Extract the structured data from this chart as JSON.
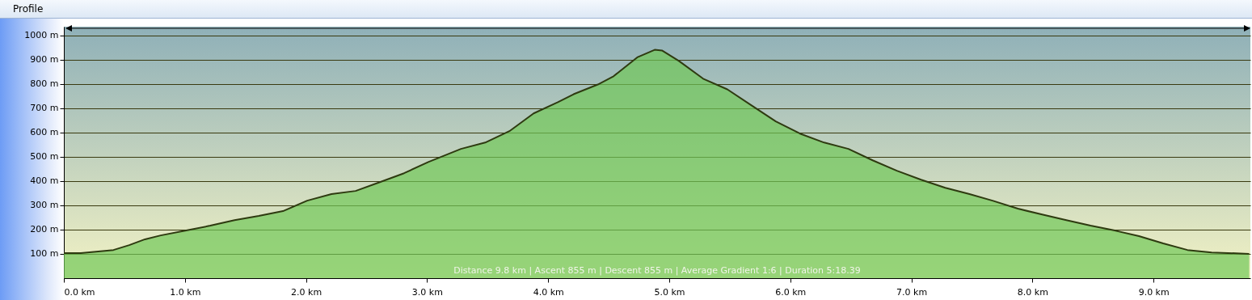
{
  "chart_data": {
    "type": "area",
    "title": "Profile",
    "x": [
      0,
      0.14,
      0.41,
      0.54,
      0.67,
      0.8,
      1.01,
      1.21,
      1.41,
      1.61,
      1.81,
      2.01,
      2.21,
      2.41,
      2.61,
      2.81,
      3.01,
      3.28,
      3.48,
      3.68,
      3.88,
      4.08,
      4.21,
      4.41,
      4.54,
      4.74,
      4.88,
      4.94,
      5.08,
      5.28,
      5.48,
      5.68,
      5.88,
      6.08,
      6.28,
      6.48,
      6.68,
      6.88,
      7.08,
      7.28,
      7.48,
      7.67,
      7.88,
      8.08,
      8.28,
      8.48,
      8.68,
      8.88,
      9.08,
      9.28,
      9.48,
      9.79
    ],
    "series": [
      {
        "color": "#70c858",
        "values": [
          103,
          103,
          116,
          136,
          160,
          176,
          196,
          216,
          239,
          256,
          276,
          319,
          346,
          359,
          395,
          432,
          478,
          532,
          558,
          605,
          678,
          724,
          757,
          797,
          831,
          910,
          940,
          937,
          894,
          821,
          777,
          711,
          645,
          595,
          558,
          532,
          485,
          442,
          405,
          372,
          346,
          319,
          286,
          262,
          239,
          216,
          196,
          173,
          143,
          116,
          106,
          100
        ]
      }
    ],
    "xlim": [
      0,
      9.8
    ],
    "ylim": [
      0,
      1035
    ],
    "xticks": [
      {
        "value": 0,
        "label": "0.0 km"
      },
      {
        "value": 1,
        "label": "1.0 km"
      },
      {
        "value": 2,
        "label": "2.0 km"
      },
      {
        "value": 3,
        "label": "3.0 km"
      },
      {
        "value": 4,
        "label": "4.0 km"
      },
      {
        "value": 5,
        "label": "5.0 km"
      },
      {
        "value": 6,
        "label": "6.0 km"
      },
      {
        "value": 7,
        "label": "7.0 km"
      },
      {
        "value": 8,
        "label": "8.0 km"
      },
      {
        "value": 9,
        "label": "9.0 km"
      }
    ],
    "yticks": [
      {
        "value": 100,
        "label": "100 m"
      },
      {
        "value": 200,
        "label": "200 m"
      },
      {
        "value": 300,
        "label": "300 m"
      },
      {
        "value": 400,
        "label": "400 m"
      },
      {
        "value": 500,
        "label": "500 m"
      },
      {
        "value": 600,
        "label": "600 m"
      },
      {
        "value": 700,
        "label": "700 m"
      },
      {
        "value": 800,
        "label": "800 m"
      },
      {
        "value": 900,
        "label": "900 m"
      },
      {
        "value": 1000,
        "label": "1000 m"
      }
    ],
    "grid": "y",
    "annotations": [
      "Distance 9.8 km | Ascent 855 m | Descent 855 m | Average Gradient 1:6 | Duration 5:18.39"
    ]
  }
}
